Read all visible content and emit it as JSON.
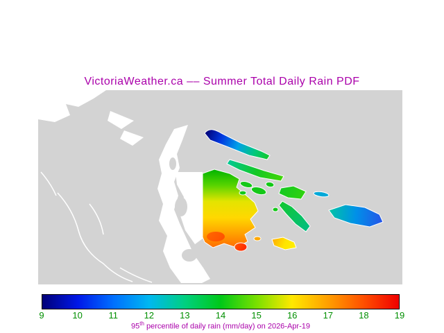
{
  "title": "VictoriaWeather.ca –– Summer Total Daily Rain PDF",
  "title_color": "#aa00aa",
  "map": {
    "sea_color": "#d3d3d3",
    "land_color": "#ffffff",
    "regions": [
      {
        "name": "north-island",
        "colors": [
          "#000070",
          "#0038e0",
          "#00a0e8",
          "#00c87c",
          "#18c818"
        ]
      },
      {
        "name": "chain-island",
        "colors": [
          "#00c896",
          "#14c824",
          "#48d800"
        ]
      },
      {
        "name": "salt-spring-island",
        "colors": [
          "#00b400",
          "#58d400",
          "#e4e400",
          "#ffd800",
          "#ffa000",
          "#ff6400"
        ]
      },
      {
        "name": "green-islets",
        "colors": [
          "#14c818",
          "#14c818"
        ]
      },
      {
        "name": "mayne-island",
        "colors": [
          "#12c824",
          "#38d408"
        ]
      },
      {
        "name": "pender-island",
        "colors": [
          "#12c830",
          "#00bc8c"
        ]
      },
      {
        "name": "saturna-island",
        "colors": [
          "#00c8a0",
          "#0090e8",
          "#2850e8"
        ]
      },
      {
        "name": "yellow-island",
        "colors": [
          "#ffa800",
          "#ffe400",
          "#fff200"
        ]
      },
      {
        "name": "red-islet",
        "colors": [
          "#ff5800",
          "#ff1c00"
        ]
      },
      {
        "name": "cyan-islet",
        "colors": [
          "#00a8d8",
          "#00a8d8"
        ]
      },
      {
        "name": "saltspring-hotspot",
        "colors": [
          "#ff6000",
          "#ff4800"
        ]
      }
    ]
  },
  "colorbar": {
    "min": 9,
    "max": 19,
    "ticks": [
      "9",
      "10",
      "11",
      "12",
      "13",
      "14",
      "15",
      "16",
      "17",
      "18",
      "19"
    ],
    "colors": [
      "#000078",
      "#0018e8",
      "#0070ff",
      "#00b8f0",
      "#00d080",
      "#00c818",
      "#78e000",
      "#ffe800",
      "#ffa000",
      "#ff5000",
      "#f00000"
    ],
    "tick_color": "#008f00",
    "caption": {
      "base": "95",
      "sup": "th",
      "rest": " percentile of daily rain (mm/day) on 2026-Apr-19"
    },
    "caption_color": "#aa00aa"
  }
}
